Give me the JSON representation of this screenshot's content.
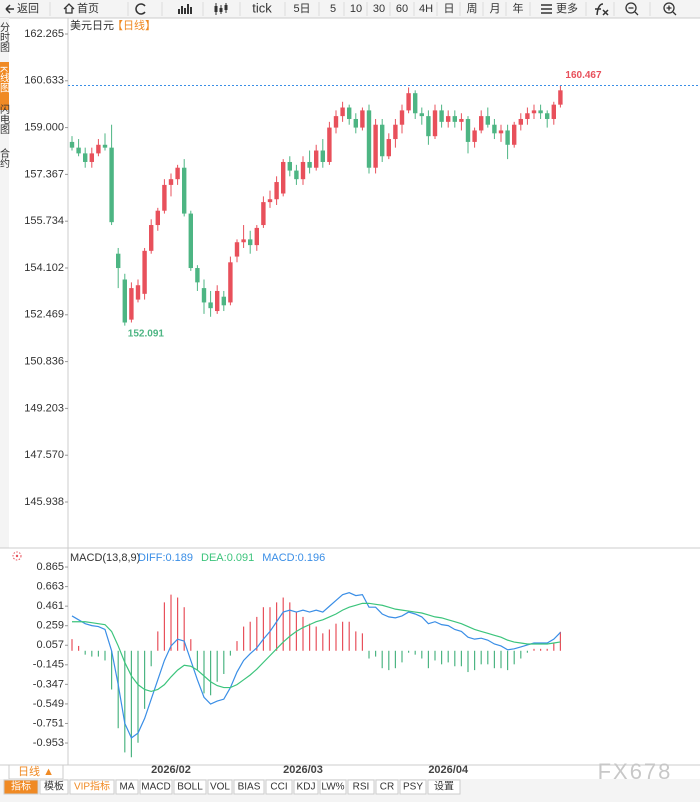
{
  "ui": {
    "toolbar": [
      "返回",
      "首页",
      "tick",
      "5日",
      "5",
      "10",
      "30",
      "60",
      "4H",
      "日",
      "周",
      "月",
      "年",
      "更多"
    ],
    "sidebar": [
      "分时图",
      "K线图",
      "闪电图",
      "合约"
    ],
    "period_tab": "日线 ▲",
    "bottom_tabs": [
      "指标",
      "模板",
      "VIP指标",
      "MA",
      "MACD",
      "BOLL",
      "VOL",
      "BIAS",
      "CCI",
      "KDJ",
      "LW%",
      "RSI",
      "CR",
      "PSY",
      "设置"
    ],
    "watermark": "FX678"
  },
  "chart_data": [
    {
      "type": "candlestick",
      "title": "美元日元",
      "subtitle": "【日线】",
      "up_color": "#e8505b",
      "down_color": "#4db583",
      "categories": [
        null,
        null,
        null,
        null,
        null,
        null,
        null,
        null,
        null,
        null,
        null,
        null,
        null,
        null,
        null,
        "2026/02",
        null,
        null,
        null,
        null,
        null,
        null,
        null,
        null,
        null,
        null,
        null,
        null,
        null,
        null,
        null,
        null,
        null,
        null,
        null,
        "2026/03",
        null,
        null,
        null,
        null,
        null,
        null,
        null,
        null,
        null,
        null,
        null,
        null,
        null,
        null,
        null,
        null,
        null,
        null,
        null,
        null,
        null,
        "2026/04",
        null,
        null,
        null,
        null,
        null,
        null,
        null,
        null,
        null,
        null,
        null,
        null,
        null,
        null,
        null,
        null,
        null
      ],
      "open": [
        158.5,
        158.3,
        158.1,
        157.8,
        158.1,
        158.4,
        158.3,
        154.6,
        153.7,
        152.3,
        153.0,
        153.2,
        154.7,
        155.6,
        156.1,
        157.0,
        157.2,
        157.6,
        156.0,
        154.1,
        153.4,
        152.9,
        152.6,
        153.1,
        152.9,
        154.5,
        155.0,
        155.1,
        154.9,
        155.6,
        156.4,
        156.5,
        156.7,
        157.8,
        157.5,
        157.2,
        157.8,
        157.6,
        158.2,
        157.8,
        159.0,
        159.4,
        159.7,
        159.3,
        159.0,
        159.6,
        157.6,
        159.1,
        158.0,
        158.6,
        159.1,
        159.6,
        160.2,
        159.5,
        159.4,
        158.7,
        159.6,
        159.2,
        159.4,
        159.2,
        159.3,
        158.5,
        158.9,
        159.4,
        159.1,
        158.8,
        158.9,
        158.4,
        159.1,
        159.3,
        159.5,
        159.6,
        159.5,
        159.3,
        159.8
      ],
      "high": [
        158.7,
        158.6,
        158.3,
        158.3,
        158.6,
        158.8,
        159.1,
        154.8,
        153.9,
        153.6,
        153.7,
        154.8,
        155.8,
        156.2,
        157.2,
        157.4,
        157.7,
        157.9,
        156.1,
        154.2,
        153.7,
        153.3,
        153.5,
        153.3,
        154.5,
        155.1,
        155.6,
        155.4,
        155.6,
        156.6,
        156.8,
        157.3,
        157.9,
        158.0,
        157.7,
        158.0,
        158.2,
        158.4,
        158.6,
        159.2,
        159.6,
        159.9,
        159.8,
        159.5,
        159.7,
        159.8,
        159.3,
        159.3,
        158.8,
        159.3,
        159.8,
        160.4,
        160.3,
        159.7,
        159.6,
        159.8,
        159.8,
        159.6,
        159.6,
        159.5,
        159.4,
        159.0,
        159.6,
        159.7,
        159.3,
        159.1,
        159.1,
        159.2,
        159.5,
        159.7,
        159.8,
        159.8,
        159.6,
        159.9,
        160.467
      ],
      "low": [
        158.2,
        158.0,
        157.6,
        157.6,
        158.0,
        158.2,
        155.6,
        153.4,
        152.091,
        152.2,
        152.9,
        153.0,
        154.6,
        155.4,
        156.0,
        156.6,
        157.0,
        155.9,
        154.0,
        153.3,
        152.5,
        152.4,
        152.5,
        152.6,
        152.8,
        154.3,
        154.8,
        154.6,
        154.7,
        155.5,
        156.2,
        156.3,
        156.6,
        157.3,
        157.0,
        157.0,
        157.4,
        157.5,
        157.6,
        157.7,
        158.8,
        159.2,
        159.1,
        158.8,
        158.9,
        157.4,
        157.4,
        157.8,
        157.9,
        158.3,
        158.8,
        159.5,
        159.3,
        159.1,
        158.4,
        158.6,
        159.0,
        159.0,
        159.0,
        158.9,
        158.1,
        158.3,
        158.8,
        159.0,
        158.6,
        158.5,
        157.9,
        158.3,
        158.9,
        159.1,
        159.3,
        159.3,
        159.0,
        159.1,
        159.7
      ],
      "close": [
        158.3,
        158.1,
        157.8,
        158.1,
        158.4,
        158.3,
        155.7,
        154.1,
        152.2,
        153.4,
        153.5,
        154.7,
        155.6,
        156.1,
        157.0,
        157.2,
        157.6,
        156.0,
        154.1,
        153.6,
        152.9,
        152.7,
        153.3,
        152.8,
        154.3,
        155.0,
        155.1,
        154.9,
        155.5,
        156.4,
        156.5,
        157.1,
        157.8,
        157.5,
        157.2,
        157.8,
        157.6,
        158.2,
        157.8,
        159.0,
        159.4,
        159.7,
        159.3,
        159.0,
        159.6,
        157.6,
        159.1,
        158.0,
        158.6,
        159.1,
        159.6,
        160.2,
        159.5,
        159.4,
        158.7,
        159.6,
        159.2,
        159.4,
        159.2,
        159.3,
        158.5,
        158.9,
        159.4,
        159.1,
        158.8,
        158.9,
        158.4,
        159.1,
        159.3,
        159.5,
        159.6,
        159.5,
        159.3,
        159.8,
        160.3
      ],
      "reference_line": 160.467,
      "reference_color": "#3a8ee6",
      "ylim": [
        144.333,
        162.823
      ],
      "yticks": [
        162.265,
        160.633,
        {
          "value": 159,
          "label": "159.000"
        },
        157.367,
        155.734,
        154.102,
        152.469,
        150.836,
        149.203,
        {
          "value": 147.57,
          "label": "147.570"
        },
        145.938
      ]
    },
    {
      "type": "macd",
      "title": "MACD(13,8,9)",
      "series": [
        {
          "name": "DIFF:0.189",
          "color": "#3a8ee6",
          "kind": "line",
          "values": [
            0.36,
            0.32,
            0.28,
            0.26,
            0.25,
            0.22,
            0.0,
            -0.35,
            -0.75,
            -0.9,
            -0.85,
            -0.7,
            -0.5,
            -0.3,
            -0.1,
            0.05,
            0.12,
            0.1,
            -0.1,
            -0.3,
            -0.48,
            -0.55,
            -0.52,
            -0.5,
            -0.38,
            -0.22,
            -0.1,
            -0.03,
            0.03,
            0.12,
            0.2,
            0.3,
            0.4,
            0.42,
            0.4,
            0.42,
            0.4,
            0.42,
            0.4,
            0.46,
            0.52,
            0.58,
            0.6,
            0.57,
            0.58,
            0.45,
            0.45,
            0.38,
            0.35,
            0.34,
            0.36,
            0.4,
            0.38,
            0.35,
            0.28,
            0.3,
            0.27,
            0.26,
            0.22,
            0.2,
            0.14,
            0.12,
            0.13,
            0.11,
            0.07,
            0.05,
            0.01,
            0.02,
            0.04,
            0.06,
            0.08,
            0.08,
            0.08,
            0.12,
            0.189
          ]
        },
        {
          "name": "DEA:0.091",
          "color": "#3cc47c",
          "kind": "line",
          "values": [
            0.3,
            0.3,
            0.3,
            0.29,
            0.28,
            0.27,
            0.2,
            0.05,
            -0.12,
            -0.26,
            -0.35,
            -0.4,
            -0.42,
            -0.4,
            -0.35,
            -0.27,
            -0.2,
            -0.15,
            -0.16,
            -0.2,
            -0.26,
            -0.32,
            -0.36,
            -0.38,
            -0.38,
            -0.35,
            -0.3,
            -0.25,
            -0.19,
            -0.12,
            -0.05,
            0.02,
            0.09,
            0.15,
            0.2,
            0.24,
            0.27,
            0.3,
            0.32,
            0.35,
            0.38,
            0.42,
            0.45,
            0.47,
            0.49,
            0.49,
            0.48,
            0.47,
            0.45,
            0.43,
            0.42,
            0.41,
            0.4,
            0.39,
            0.37,
            0.35,
            0.34,
            0.32,
            0.3,
            0.28,
            0.25,
            0.22,
            0.2,
            0.18,
            0.16,
            0.14,
            0.11,
            0.09,
            0.08,
            0.07,
            0.07,
            0.07,
            0.07,
            0.08,
            0.091
          ]
        },
        {
          "name": "MACD:0.196",
          "color": "#3a8ee6",
          "kind": "histogram",
          "up_color": "#e8505b",
          "down_color": "#4db583",
          "values": [
            0.12,
            0.05,
            -0.04,
            -0.06,
            -0.06,
            -0.1,
            -0.4,
            -0.8,
            -1.05,
            -1.1,
            -0.95,
            -0.6,
            -0.16,
            0.2,
            0.5,
            0.58,
            0.55,
            0.45,
            0.12,
            -0.2,
            -0.44,
            -0.46,
            -0.32,
            -0.24,
            -0.05,
            0.1,
            0.25,
            0.3,
            0.35,
            0.45,
            0.45,
            0.5,
            0.55,
            0.5,
            0.4,
            0.35,
            0.28,
            0.25,
            0.18,
            0.22,
            0.28,
            0.3,
            0.3,
            0.2,
            0.18,
            -0.08,
            -0.06,
            -0.18,
            -0.2,
            -0.18,
            -0.12,
            -0.02,
            -0.04,
            -0.08,
            -0.18,
            -0.1,
            -0.14,
            -0.12,
            -0.16,
            -0.16,
            -0.22,
            -0.2,
            -0.14,
            -0.14,
            -0.18,
            -0.18,
            -0.2,
            -0.14,
            -0.08,
            -0.02,
            0.02,
            0.02,
            0.02,
            0.08,
            0.196
          ]
        }
      ],
      "ylim": [
        -1.18,
        1.041
      ],
      "yticks": [
        0.865,
        0.663,
        0.461,
        0.259,
        0.057,
        -0.145,
        -0.347,
        -0.549,
        -0.751,
        -0.953
      ]
    }
  ]
}
